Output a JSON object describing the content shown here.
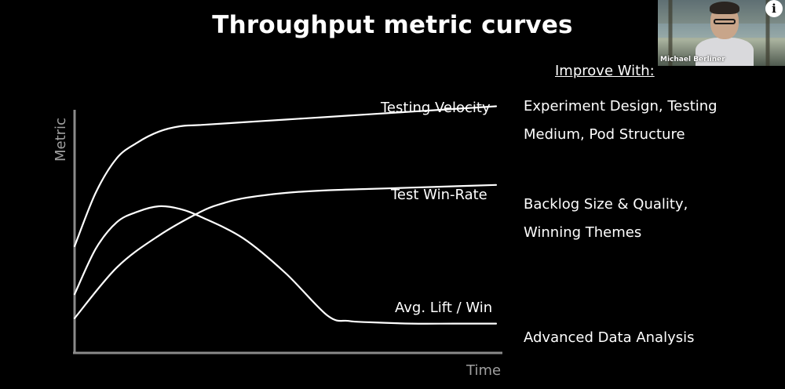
{
  "slide": {
    "title": "Throughput metric curves",
    "improve_heading": "Improve With:",
    "notes": {
      "testing_velocity": "Experiment Design, Testing Medium, Pod Structure",
      "win_rate_line1": "Backlog Size & Quality,",
      "win_rate_line2": "Winning Themes",
      "avg_lift": "Advanced Data Analysis"
    }
  },
  "video": {
    "participant_name": "Michael Berliner",
    "info_icon": "info-icon"
  },
  "chart_data": {
    "type": "line",
    "xlabel": "Time",
    "ylabel": "Metric",
    "xlim": [
      0,
      1
    ],
    "ylim": [
      0,
      1
    ],
    "grid": false,
    "legend": "none",
    "series": [
      {
        "name": "Testing Velocity",
        "x": [
          0,
          0.05,
          0.1,
          0.15,
          0.2,
          0.25,
          0.3,
          0.4,
          0.5,
          0.6,
          0.7,
          0.8,
          0.9,
          1.0
        ],
        "y": [
          0.4,
          0.6,
          0.73,
          0.79,
          0.83,
          0.85,
          0.855,
          0.865,
          0.875,
          0.885,
          0.895,
          0.905,
          0.915,
          0.925
        ]
      },
      {
        "name": "Test Win-Rate",
        "x": [
          0,
          0.1,
          0.2,
          0.3,
          0.35,
          0.4,
          0.5,
          0.6,
          0.7,
          0.8,
          0.9,
          1.0
        ],
        "y": [
          0.13,
          0.32,
          0.44,
          0.53,
          0.56,
          0.58,
          0.6,
          0.61,
          0.615,
          0.62,
          0.625,
          0.63
        ]
      },
      {
        "name": "Avg. Lift / Win",
        "x": [
          0,
          0.05,
          0.1,
          0.15,
          0.2,
          0.25,
          0.3,
          0.4,
          0.5,
          0.6,
          0.65,
          0.7,
          0.8,
          0.9,
          1.0
        ],
        "y": [
          0.22,
          0.39,
          0.49,
          0.53,
          0.55,
          0.54,
          0.51,
          0.43,
          0.3,
          0.14,
          0.12,
          0.115,
          0.11,
          0.11,
          0.11
        ]
      }
    ],
    "series_labels": [
      "Testing Velocity",
      "Test Win-Rate",
      "Avg. Lift / Win"
    ]
  }
}
